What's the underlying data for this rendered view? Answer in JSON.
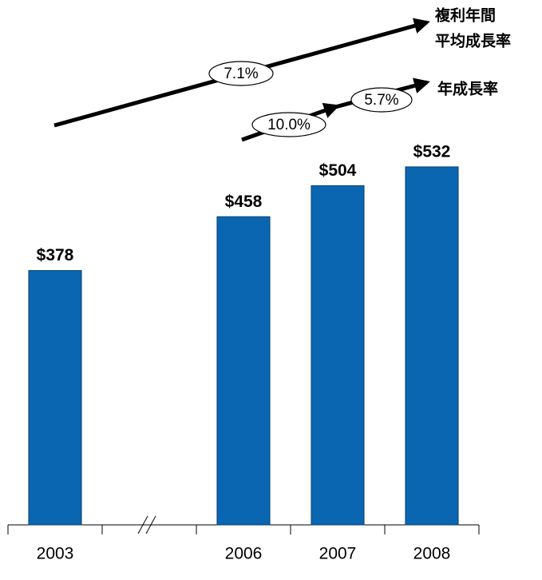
{
  "chart_data": {
    "type": "bar",
    "categories": [
      "2003",
      null,
      "2006",
      "2007",
      "2008"
    ],
    "values": [
      378,
      null,
      458,
      504,
      532
    ],
    "value_labels": [
      "$378",
      null,
      "$458",
      "$504",
      "$532"
    ],
    "color": "#0a66b1",
    "ylim": [
      0,
      780
    ],
    "annotations": {
      "cagr": {
        "label": "7.1%",
        "text": [
          "複利年間",
          "平均成長率"
        ]
      },
      "annual": {
        "labels": [
          "10.0%",
          "5.7%"
        ],
        "text": "年成長率"
      }
    }
  }
}
